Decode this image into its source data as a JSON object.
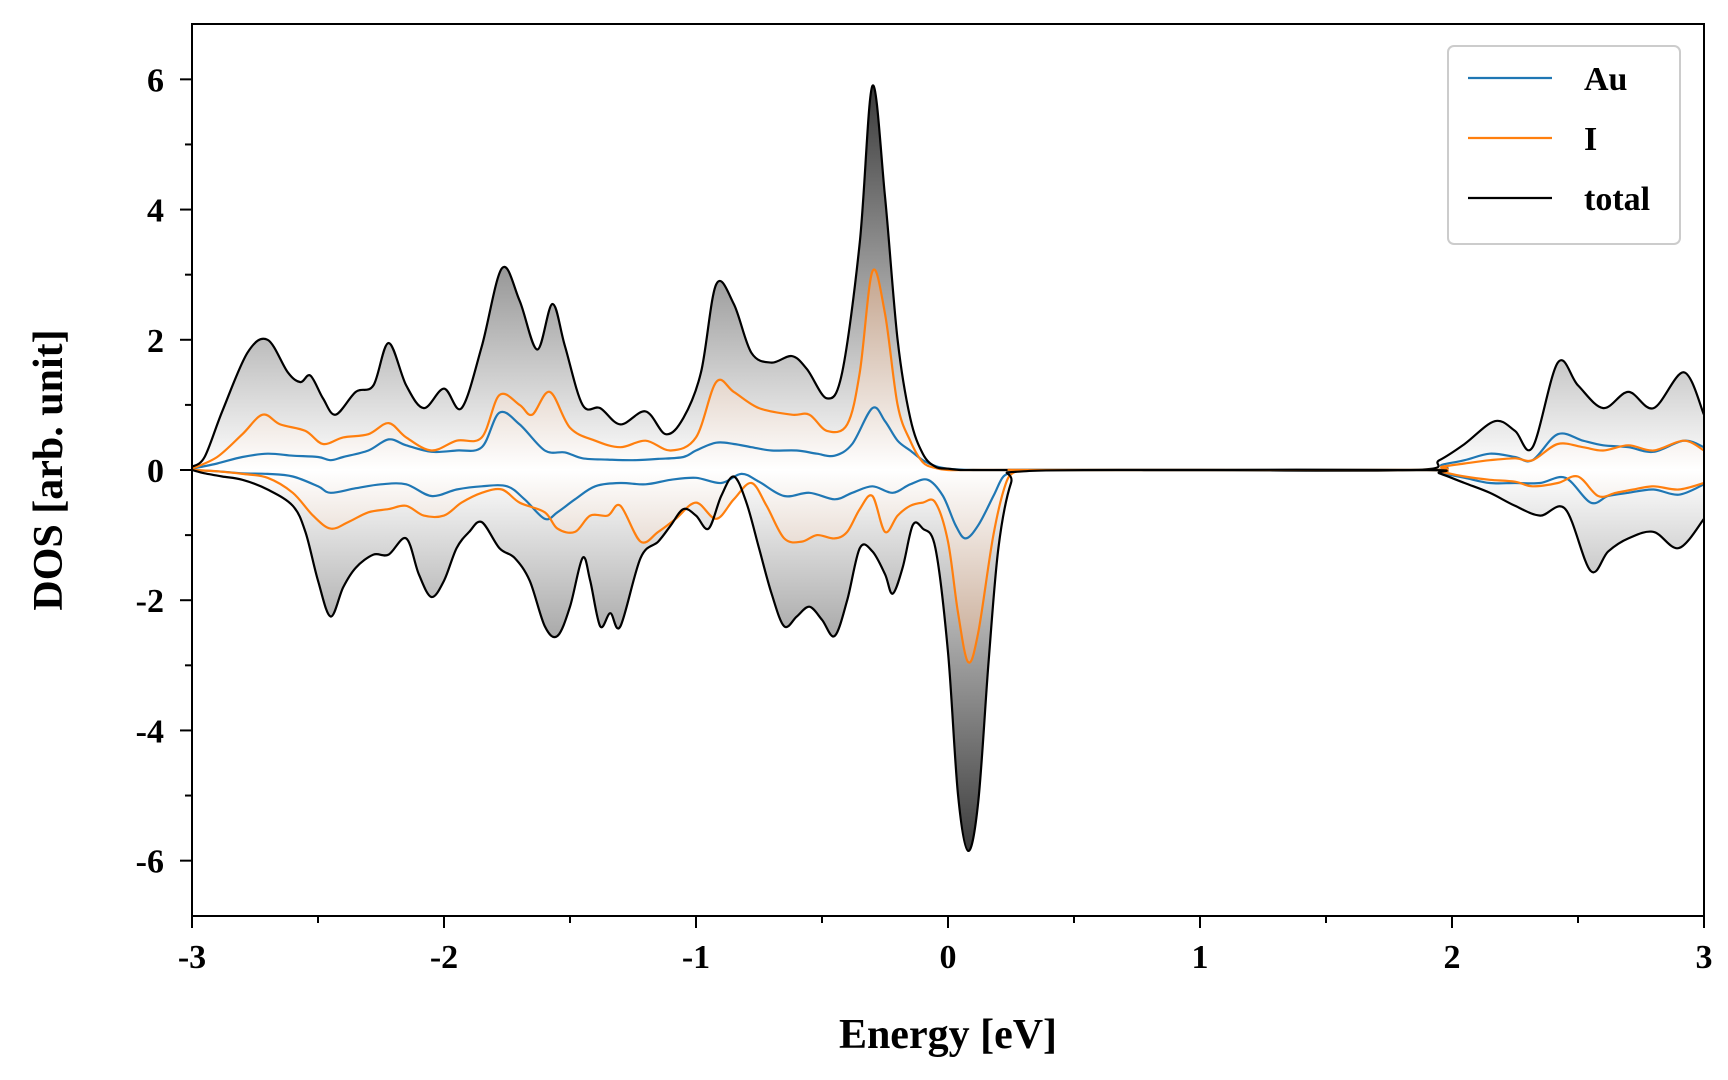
{
  "chart_data": {
    "type": "line",
    "title": "",
    "xlabel": "Energy [eV]",
    "ylabel": "DOS [arb. unit]",
    "xlim": [
      -3,
      3
    ],
    "ylim": [
      -6.85,
      6.85
    ],
    "xticks": [
      -3,
      -2,
      -1,
      0,
      1,
      2,
      3
    ],
    "xtick_labels": [
      "-3",
      "-2",
      "-1",
      "0",
      "1",
      "2",
      "3"
    ],
    "yticks": [
      -6,
      -4,
      -2,
      0,
      2,
      4,
      6
    ],
    "ytick_labels": [
      "-6",
      "-4",
      "-2",
      "0",
      "2",
      "4",
      "6"
    ],
    "grid": false,
    "legend_position": "top-right",
    "fill": "gradient shading between each curve and zero (grey for total, orange-brown for I)",
    "series": [
      {
        "name": "Au",
        "color": "#1f77b4",
        "spin": "up",
        "x": [
          -3.0,
          -2.9,
          -2.8,
          -2.7,
          -2.6,
          -2.5,
          -2.45,
          -2.4,
          -2.3,
          -2.22,
          -2.15,
          -2.05,
          -1.95,
          -1.85,
          -1.78,
          -1.7,
          -1.6,
          -1.52,
          -1.45,
          -1.35,
          -1.25,
          -1.15,
          -1.05,
          -1.0,
          -0.92,
          -0.85,
          -0.78,
          -0.7,
          -0.6,
          -0.52,
          -0.45,
          -0.38,
          -0.3,
          -0.25,
          -0.2,
          -0.15,
          -0.1,
          -0.05,
          0.0,
          0.1,
          0.3,
          1.0,
          1.9,
          1.96,
          2.05,
          2.15,
          2.25,
          2.32,
          2.42,
          2.52,
          2.6,
          2.7,
          2.8,
          2.92,
          3.0
        ],
        "y": [
          0.02,
          0.1,
          0.2,
          0.25,
          0.22,
          0.2,
          0.15,
          0.2,
          0.3,
          0.47,
          0.38,
          0.28,
          0.3,
          0.35,
          0.88,
          0.7,
          0.3,
          0.27,
          0.18,
          0.16,
          0.15,
          0.17,
          0.2,
          0.3,
          0.42,
          0.4,
          0.35,
          0.3,
          0.3,
          0.25,
          0.22,
          0.4,
          0.95,
          0.75,
          0.45,
          0.3,
          0.15,
          0.06,
          0.02,
          0.0,
          0.0,
          0.0,
          0.0,
          0.08,
          0.15,
          0.25,
          0.2,
          0.15,
          0.55,
          0.45,
          0.38,
          0.35,
          0.28,
          0.45,
          0.35
        ]
      },
      {
        "name": "I",
        "color": "#ff7f0e",
        "spin": "up",
        "x": [
          -3.0,
          -2.9,
          -2.8,
          -2.72,
          -2.65,
          -2.55,
          -2.48,
          -2.4,
          -2.3,
          -2.22,
          -2.15,
          -2.05,
          -1.95,
          -1.85,
          -1.78,
          -1.7,
          -1.65,
          -1.58,
          -1.5,
          -1.4,
          -1.3,
          -1.2,
          -1.1,
          -1.0,
          -0.92,
          -0.85,
          -0.75,
          -0.62,
          -0.55,
          -0.48,
          -0.4,
          -0.35,
          -0.3,
          -0.25,
          -0.2,
          -0.15,
          -0.1,
          -0.05,
          0.0,
          0.1,
          0.3,
          1.0,
          1.9,
          1.96,
          2.05,
          2.15,
          2.25,
          2.32,
          2.42,
          2.52,
          2.6,
          2.7,
          2.8,
          2.92,
          3.0
        ],
        "y": [
          0.02,
          0.2,
          0.55,
          0.85,
          0.7,
          0.6,
          0.4,
          0.5,
          0.55,
          0.72,
          0.5,
          0.3,
          0.45,
          0.5,
          1.15,
          1.0,
          0.85,
          1.2,
          0.65,
          0.45,
          0.35,
          0.45,
          0.3,
          0.5,
          1.35,
          1.2,
          0.95,
          0.85,
          0.85,
          0.6,
          0.7,
          1.5,
          3.05,
          2.4,
          1.0,
          0.45,
          0.12,
          0.03,
          0.0,
          0.0,
          0.0,
          0.0,
          0.0,
          0.05,
          0.1,
          0.15,
          0.18,
          0.15,
          0.4,
          0.35,
          0.3,
          0.38,
          0.3,
          0.45,
          0.3
        ]
      },
      {
        "name": "total",
        "color": "#000000",
        "spin": "up",
        "x": [
          -3.0,
          -2.95,
          -2.88,
          -2.78,
          -2.7,
          -2.62,
          -2.57,
          -2.53,
          -2.48,
          -2.43,
          -2.35,
          -2.28,
          -2.22,
          -2.15,
          -2.08,
          -2.0,
          -1.93,
          -1.85,
          -1.77,
          -1.7,
          -1.63,
          -1.57,
          -1.52,
          -1.45,
          -1.38,
          -1.3,
          -1.2,
          -1.12,
          -1.05,
          -0.98,
          -0.92,
          -0.85,
          -0.78,
          -0.7,
          -0.62,
          -0.56,
          -0.48,
          -0.42,
          -0.35,
          -0.3,
          -0.25,
          -0.2,
          -0.15,
          -0.1,
          -0.05,
          0.0,
          0.05,
          0.1,
          0.3,
          1.0,
          1.85,
          1.95,
          2.05,
          2.17,
          2.25,
          2.32,
          2.42,
          2.5,
          2.6,
          2.7,
          2.8,
          2.92,
          3.0
        ],
        "y": [
          0.05,
          0.2,
          0.9,
          1.8,
          2.0,
          1.5,
          1.35,
          1.45,
          1.1,
          0.85,
          1.2,
          1.3,
          1.95,
          1.3,
          0.95,
          1.25,
          0.95,
          1.9,
          3.1,
          2.6,
          1.85,
          2.55,
          1.9,
          1.0,
          0.95,
          0.7,
          0.9,
          0.55,
          0.8,
          1.5,
          2.85,
          2.55,
          1.8,
          1.65,
          1.75,
          1.55,
          1.1,
          1.5,
          3.5,
          5.9,
          4.2,
          2.0,
          0.8,
          0.25,
          0.05,
          0.02,
          0.0,
          0.0,
          0.0,
          0.0,
          0.0,
          0.15,
          0.4,
          0.75,
          0.6,
          0.35,
          1.65,
          1.3,
          0.95,
          1.2,
          0.95,
          1.5,
          0.85
        ]
      },
      {
        "name": "Au",
        "color": "#1f77b4",
        "spin": "down",
        "x": [
          -3.0,
          -2.9,
          -2.8,
          -2.7,
          -2.6,
          -2.5,
          -2.45,
          -2.35,
          -2.25,
          -2.15,
          -2.05,
          -1.95,
          -1.85,
          -1.75,
          -1.68,
          -1.6,
          -1.55,
          -1.48,
          -1.4,
          -1.3,
          -1.2,
          -1.1,
          -1.0,
          -0.9,
          -0.82,
          -0.75,
          -0.65,
          -0.55,
          -0.45,
          -0.38,
          -0.3,
          -0.22,
          -0.15,
          -0.08,
          -0.02,
          0.03,
          0.07,
          0.12,
          0.18,
          0.22,
          0.27,
          0.3,
          1.0,
          1.9,
          1.96,
          2.05,
          2.15,
          2.25,
          2.35,
          2.45,
          2.55,
          2.62,
          2.7,
          2.8,
          2.9,
          3.0
        ],
        "y": [
          0.0,
          -0.02,
          -0.05,
          -0.06,
          -0.1,
          -0.25,
          -0.35,
          -0.28,
          -0.22,
          -0.22,
          -0.4,
          -0.3,
          -0.25,
          -0.25,
          -0.45,
          -0.75,
          -0.65,
          -0.45,
          -0.25,
          -0.2,
          -0.22,
          -0.15,
          -0.12,
          -0.2,
          -0.06,
          -0.18,
          -0.4,
          -0.35,
          -0.45,
          -0.35,
          -0.25,
          -0.35,
          -0.22,
          -0.15,
          -0.4,
          -0.85,
          -1.05,
          -0.85,
          -0.4,
          -0.1,
          -0.02,
          0.0,
          0.0,
          0.0,
          -0.05,
          -0.12,
          -0.2,
          -0.2,
          -0.2,
          -0.12,
          -0.5,
          -0.4,
          -0.35,
          -0.3,
          -0.38,
          -0.22
        ]
      },
      {
        "name": "I",
        "color": "#ff7f0e",
        "spin": "down",
        "x": [
          -3.0,
          -2.9,
          -2.8,
          -2.7,
          -2.6,
          -2.52,
          -2.45,
          -2.38,
          -2.3,
          -2.22,
          -2.15,
          -2.08,
          -2.0,
          -1.93,
          -1.85,
          -1.77,
          -1.7,
          -1.6,
          -1.55,
          -1.48,
          -1.42,
          -1.35,
          -1.3,
          -1.22,
          -1.15,
          -1.08,
          -1.0,
          -0.92,
          -0.85,
          -0.78,
          -0.72,
          -0.65,
          -0.58,
          -0.52,
          -0.45,
          -0.4,
          -0.35,
          -0.3,
          -0.25,
          -0.2,
          -0.15,
          -0.1,
          -0.05,
          0.0,
          0.04,
          0.08,
          0.12,
          0.18,
          0.23,
          0.27,
          0.3,
          1.0,
          1.9,
          1.96,
          2.05,
          2.15,
          2.25,
          2.32,
          2.42,
          2.5,
          2.58,
          2.65,
          2.72,
          2.8,
          2.9,
          3.0
        ],
        "y": [
          0.0,
          -0.02,
          -0.06,
          -0.12,
          -0.35,
          -0.7,
          -0.9,
          -0.8,
          -0.65,
          -0.6,
          -0.55,
          -0.7,
          -0.7,
          -0.5,
          -0.35,
          -0.3,
          -0.5,
          -0.65,
          -0.9,
          -0.95,
          -0.7,
          -0.7,
          -0.55,
          -1.1,
          -0.95,
          -0.75,
          -0.5,
          -0.75,
          -0.45,
          -0.2,
          -0.55,
          -1.05,
          -1.1,
          -1.0,
          -1.05,
          -0.95,
          -0.6,
          -0.4,
          -0.95,
          -0.7,
          -0.55,
          -0.5,
          -0.5,
          -1.1,
          -2.2,
          -2.95,
          -2.5,
          -1.0,
          -0.2,
          -0.02,
          0.0,
          0.0,
          0.0,
          -0.03,
          -0.1,
          -0.15,
          -0.18,
          -0.25,
          -0.2,
          -0.1,
          -0.4,
          -0.35,
          -0.3,
          -0.25,
          -0.3,
          -0.2
        ]
      },
      {
        "name": "total",
        "color": "#000000",
        "spin": "down",
        "x": [
          -3.0,
          -2.95,
          -2.88,
          -2.8,
          -2.7,
          -2.6,
          -2.55,
          -2.5,
          -2.45,
          -2.4,
          -2.35,
          -2.28,
          -2.22,
          -2.15,
          -2.1,
          -2.05,
          -2.0,
          -1.95,
          -1.9,
          -1.85,
          -1.78,
          -1.72,
          -1.66,
          -1.6,
          -1.55,
          -1.5,
          -1.45,
          -1.42,
          -1.38,
          -1.34,
          -1.3,
          -1.22,
          -1.15,
          -1.1,
          -1.05,
          -1.0,
          -0.95,
          -0.9,
          -0.85,
          -0.8,
          -0.75,
          -0.7,
          -0.65,
          -0.6,
          -0.55,
          -0.5,
          -0.45,
          -0.4,
          -0.35,
          -0.3,
          -0.25,
          -0.22,
          -0.18,
          -0.14,
          -0.1,
          -0.05,
          0.0,
          0.04,
          0.08,
          0.12,
          0.16,
          0.2,
          0.25,
          0.3,
          1.0,
          1.9,
          1.95,
          2.05,
          2.15,
          2.25,
          2.35,
          2.45,
          2.55,
          2.62,
          2.7,
          2.8,
          2.9,
          3.0
        ],
        "y": [
          0.0,
          -0.05,
          -0.1,
          -0.15,
          -0.3,
          -0.55,
          -0.95,
          -1.7,
          -2.25,
          -1.8,
          -1.5,
          -1.3,
          -1.3,
          -1.05,
          -1.6,
          -1.95,
          -1.7,
          -1.2,
          -0.95,
          -0.8,
          -1.2,
          -1.35,
          -1.7,
          -2.4,
          -2.55,
          -2.1,
          -1.35,
          -1.7,
          -2.4,
          -2.2,
          -2.4,
          -1.35,
          -1.1,
          -0.85,
          -0.6,
          -0.7,
          -0.9,
          -0.4,
          -0.1,
          -0.5,
          -1.2,
          -1.9,
          -2.4,
          -2.25,
          -2.1,
          -2.3,
          -2.55,
          -2.0,
          -1.2,
          -1.25,
          -1.6,
          -1.9,
          -1.5,
          -0.85,
          -0.9,
          -1.2,
          -2.8,
          -5.0,
          -5.85,
          -5.1,
          -3.0,
          -1.2,
          -0.2,
          -0.02,
          0.0,
          0.0,
          -0.05,
          -0.2,
          -0.35,
          -0.55,
          -0.7,
          -0.6,
          -1.55,
          -1.25,
          -1.05,
          -0.95,
          -1.2,
          -0.75
        ]
      }
    ]
  }
}
